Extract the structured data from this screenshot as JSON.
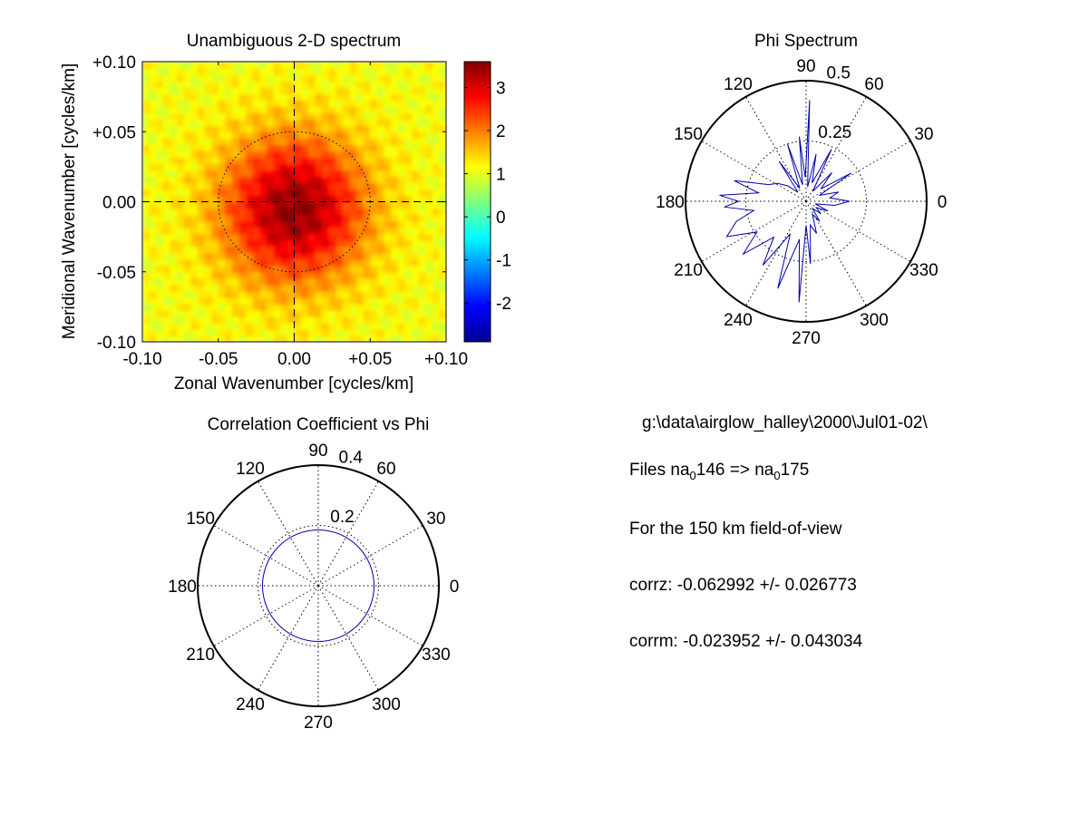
{
  "colors": {
    "background": "#ffffff",
    "axis": "#000000",
    "trace": "#0000aa",
    "colormap": "jet"
  },
  "chart_data": [
    {
      "type": "heatmap",
      "title": "Unambiguous 2-D spectrum",
      "xlabel": "Zonal Wavenumber [cycles/km]",
      "ylabel": "Meridional Wavenumber [cycles/km]",
      "xlim": [
        -0.1,
        0.1
      ],
      "ylim": [
        -0.1,
        0.1
      ],
      "xticks": [
        "-0.10",
        "-0.05",
        "0.00",
        "+0.05",
        "+0.10"
      ],
      "yticks": [
        "+0.10",
        "+0.05",
        "0.00",
        "-0.05",
        "-0.10"
      ],
      "colorbar": {
        "range": [
          -2.9,
          3.6
        ],
        "ticks": [
          "3",
          "2",
          "1",
          "0",
          "-1",
          "-2"
        ]
      },
      "peak": {
        "x": 0.0,
        "y": -0.005,
        "value": 3.5
      },
      "spread_x": 0.047,
      "spread_y": 0.052,
      "background_level": 1.1,
      "reference_circle_radius": 0.05,
      "crosshair": [
        0.0,
        0.0
      ],
      "grid": false
    },
    {
      "type": "polar",
      "title": "Phi Spectrum",
      "rmax": 0.5,
      "radial_ticks": [
        "0.25",
        "0.5"
      ],
      "angle_ticks": [
        "90",
        "60",
        "30",
        "0",
        "330",
        "300",
        "270",
        "240",
        "210",
        "180",
        "150",
        "120"
      ],
      "series": [
        {
          "theta_deg": [
            0,
            8,
            16,
            24,
            32,
            40,
            48,
            56,
            64,
            72,
            78,
            84,
            88,
            92,
            96,
            102,
            108,
            116,
            124,
            132,
            140,
            148,
            156,
            164,
            170,
            176,
            180,
            184,
            190,
            196,
            204,
            212,
            220,
            228,
            236,
            244,
            252,
            260,
            266,
            270,
            274,
            280,
            288,
            296,
            304,
            312,
            320,
            328,
            336,
            344,
            352
          ],
          "r": [
            0.18,
            0.1,
            0.14,
            0.06,
            0.22,
            0.08,
            0.16,
            0.05,
            0.24,
            0.08,
            0.2,
            0.06,
            0.42,
            0.1,
            0.27,
            0.07,
            0.25,
            0.06,
            0.2,
            0.05,
            0.1,
            0.14,
            0.17,
            0.31,
            0.2,
            0.36,
            0.28,
            0.34,
            0.22,
            0.3,
            0.36,
            0.24,
            0.34,
            0.2,
            0.32,
            0.15,
            0.38,
            0.16,
            0.42,
            0.1,
            0.26,
            0.1,
            0.14,
            0.06,
            0.1,
            0.04,
            0.08,
            0.05,
            0.1,
            0.04,
            0.12
          ]
        }
      ],
      "grid": true
    },
    {
      "type": "polar",
      "title": "Correlation Coefficient vs Phi",
      "rmax": 0.4,
      "radial_ticks": [
        "0.2",
        "0.4"
      ],
      "angle_ticks": [
        "90",
        "60",
        "30",
        "0",
        "330",
        "300",
        "270",
        "240",
        "210",
        "180",
        "150",
        "120"
      ],
      "series": [
        {
          "theta_deg": [
            0,
            360
          ],
          "r": [
            0.185,
            0.185
          ]
        }
      ],
      "grid": true
    }
  ],
  "info": {
    "path": "g:\\data\\airglow_halley\\2000\\Jul01-02\\",
    "files_prefix": "Files  na",
    "files_sub_1": "0",
    "files_mid": "146  =>  na",
    "files_sub_2": "0",
    "files_end": "175",
    "fov": "For the  150 km field-of-view",
    "corrz": "corrz: -0.062992 +/- 0.026773",
    "corrm": "corrm: -0.023952 +/- 0.043034"
  }
}
